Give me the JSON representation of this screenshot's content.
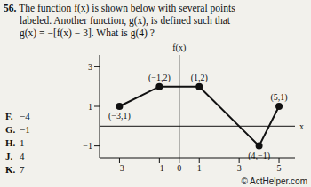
{
  "question": {
    "number": "56.",
    "lines": [
      "The function f(x) is shown below with several points",
      "labeled. Another function, g(x), is defined such that",
      "g(x) = −[f(x) − 3]. What is g(4) ?"
    ]
  },
  "choices": [
    {
      "letter": "F.",
      "text": "−4"
    },
    {
      "letter": "G.",
      "text": "−1"
    },
    {
      "letter": "H.",
      "text": "1"
    },
    {
      "letter": "J.",
      "text": "4"
    },
    {
      "letter": "K.",
      "text": "7"
    }
  ],
  "chart_data": {
    "type": "line",
    "x": [
      -3,
      -1,
      1,
      4,
      5
    ],
    "values": [
      1,
      2,
      2,
      -1,
      1
    ],
    "point_labels": [
      "(−3,1)",
      "(−1,2)",
      "(1,2)",
      "(4,−1)",
      "(5,1)"
    ],
    "x_label": "x",
    "y_label": "f(x)",
    "xlim": [
      -4,
      5.8
    ],
    "ylim": [
      -1.6,
      3.6
    ],
    "xticks": [
      {
        "value": -3,
        "label": "−3"
      },
      {
        "value": -1,
        "label": "−1"
      },
      0,
      1,
      3,
      5
    ],
    "yticks": [
      {
        "value": -1,
        "label": "−1"
      },
      1,
      3
    ],
    "color": "#111111",
    "marker": "circle",
    "grid": false
  },
  "watermark": "© ActHelper.com"
}
